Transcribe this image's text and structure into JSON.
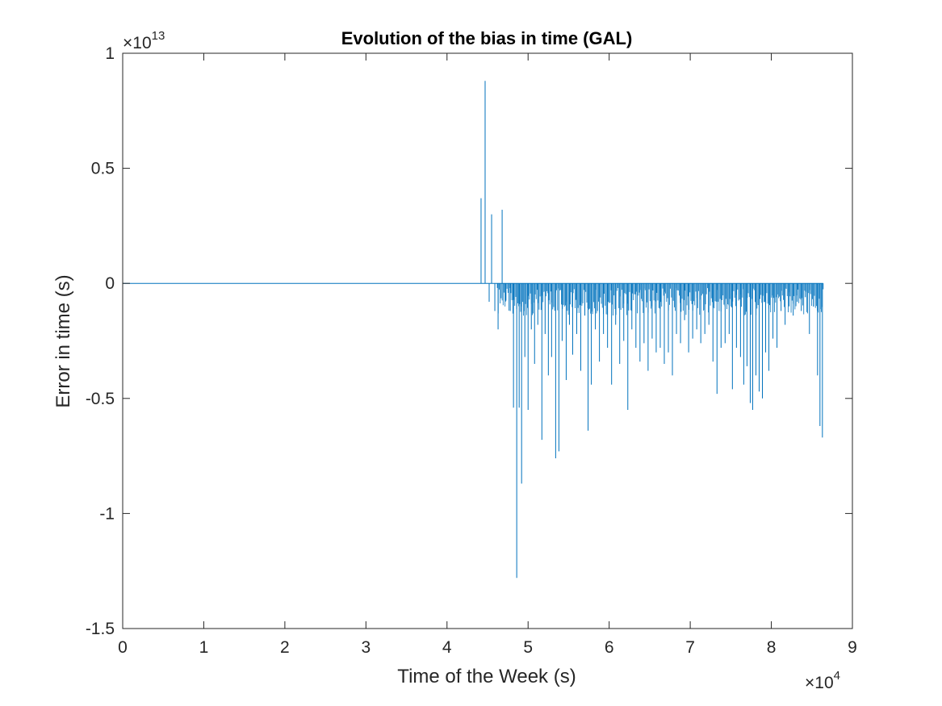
{
  "chart_data": {
    "type": "line",
    "title": "Evolution of the bias in time (GAL)",
    "xlabel": "Time of the Week (s)",
    "ylabel": "Error in time (s)",
    "x_multiplier": "×10",
    "x_exponent": "4",
    "y_multiplier": "×10",
    "y_exponent": "13",
    "xlim": [
      0,
      9
    ],
    "ylim": [
      -1.5,
      1
    ],
    "xticks": [
      0,
      1,
      2,
      3,
      4,
      5,
      6,
      7,
      8,
      9
    ],
    "xtick_labels": [
      "0",
      "1",
      "2",
      "3",
      "4",
      "5",
      "6",
      "7",
      "8",
      "9"
    ],
    "yticks": [
      1,
      0.5,
      0,
      -0.5,
      -1,
      -1.5
    ],
    "ytick_labels": [
      "1",
      "0.5",
      "0",
      "-0.5",
      "-1",
      "-1.5"
    ],
    "grid": false,
    "line_color": "#0072BD",
    "series": [
      {
        "x": [
          0,
          4.4,
          4.45,
          4.47,
          4.5,
          4.54,
          4.65,
          4.85,
          4.9,
          5.05,
          5.25,
          5.35,
          5.55,
          5.75,
          6.0,
          6.25,
          6.5,
          6.75,
          7.0,
          7.25,
          7.55,
          7.8,
          8.05,
          8.3,
          8.55,
          8.62,
          8.64
        ],
        "y": [
          0,
          0,
          0.37,
          -0.02,
          0.88,
          -0.08,
          0.32,
          -0.54,
          -1.28,
          -0.87,
          -0.68,
          -0.76,
          -0.64,
          -0.62,
          -0.44,
          -0.3,
          -0.4,
          -0.38,
          -0.3,
          -0.37,
          -0.48,
          -0.47,
          -0.55,
          -0.4,
          -0.25,
          -0.67,
          0
        ]
      }
    ],
    "spikes": [
      [
        4.42,
        0.37
      ],
      [
        4.47,
        0.88
      ],
      [
        4.52,
        -0.08
      ],
      [
        4.55,
        0.3
      ],
      [
        4.59,
        -0.12
      ],
      [
        4.63,
        -0.2
      ],
      [
        4.68,
        0.32
      ],
      [
        4.72,
        -0.08
      ],
      [
        4.78,
        -0.12
      ],
      [
        4.82,
        -0.54
      ],
      [
        4.86,
        -1.28
      ],
      [
        4.89,
        -0.54
      ],
      [
        4.92,
        -0.87
      ],
      [
        4.96,
        -0.32
      ],
      [
        5.0,
        -0.55
      ],
      [
        5.04,
        -0.2
      ],
      [
        5.08,
        -0.35
      ],
      [
        5.12,
        -0.18
      ],
      [
        5.17,
        -0.68
      ],
      [
        5.21,
        -0.22
      ],
      [
        5.25,
        -0.4
      ],
      [
        5.29,
        -0.32
      ],
      [
        5.34,
        -0.76
      ],
      [
        5.38,
        -0.73
      ],
      [
        5.42,
        -0.25
      ],
      [
        5.47,
        -0.42
      ],
      [
        5.51,
        -0.18
      ],
      [
        5.55,
        -0.31
      ],
      [
        5.6,
        -0.22
      ],
      [
        5.65,
        -0.38
      ],
      [
        5.7,
        -0.14
      ],
      [
        5.74,
        -0.64
      ],
      [
        5.78,
        -0.44
      ],
      [
        5.83,
        -0.2
      ],
      [
        5.88,
        -0.34
      ],
      [
        5.93,
        -0.22
      ],
      [
        5.98,
        -0.28
      ],
      [
        6.03,
        -0.44
      ],
      [
        6.08,
        -0.18
      ],
      [
        6.13,
        -0.35
      ],
      [
        6.18,
        -0.25
      ],
      [
        6.23,
        -0.55
      ],
      [
        6.28,
        -0.2
      ],
      [
        6.33,
        -0.28
      ],
      [
        6.38,
        -0.34
      ],
      [
        6.43,
        -0.26
      ],
      [
        6.48,
        -0.38
      ],
      [
        6.53,
        -0.24
      ],
      [
        6.58,
        -0.3
      ],
      [
        6.63,
        -0.28
      ],
      [
        6.68,
        -0.35
      ],
      [
        6.73,
        -0.3
      ],
      [
        6.78,
        -0.4
      ],
      [
        6.83,
        -0.22
      ],
      [
        6.88,
        -0.26
      ],
      [
        6.93,
        -0.16
      ],
      [
        6.98,
        -0.3
      ],
      [
        7.03,
        -0.24
      ],
      [
        7.08,
        -0.2
      ],
      [
        7.13,
        -0.26
      ],
      [
        7.18,
        -0.22
      ],
      [
        7.23,
        -0.18
      ],
      [
        7.28,
        -0.34
      ],
      [
        7.33,
        -0.48
      ],
      [
        7.38,
        -0.28
      ],
      [
        7.43,
        -0.26
      ],
      [
        7.48,
        -0.22
      ],
      [
        7.52,
        -0.46
      ],
      [
        7.57,
        -0.28
      ],
      [
        7.62,
        -0.32
      ],
      [
        7.66,
        -0.44
      ],
      [
        7.7,
        -0.36
      ],
      [
        7.74,
        -0.52
      ],
      [
        7.77,
        -0.55
      ],
      [
        7.81,
        -0.4
      ],
      [
        7.85,
        -0.47
      ],
      [
        7.89,
        -0.5
      ],
      [
        7.93,
        -0.3
      ],
      [
        7.97,
        -0.38
      ],
      [
        8.02,
        -0.24
      ],
      [
        8.07,
        -0.28
      ],
      [
        8.12,
        -0.12
      ],
      [
        8.17,
        -0.18
      ],
      [
        8.22,
        -0.1
      ],
      [
        8.27,
        -0.14
      ],
      [
        8.32,
        -0.08
      ],
      [
        8.37,
        -0.12
      ],
      [
        8.42,
        -0.06
      ],
      [
        8.47,
        -0.22
      ],
      [
        8.52,
        -0.1
      ],
      [
        8.57,
        -0.4
      ],
      [
        8.6,
        -0.62
      ],
      [
        8.63,
        -0.67
      ]
    ]
  }
}
